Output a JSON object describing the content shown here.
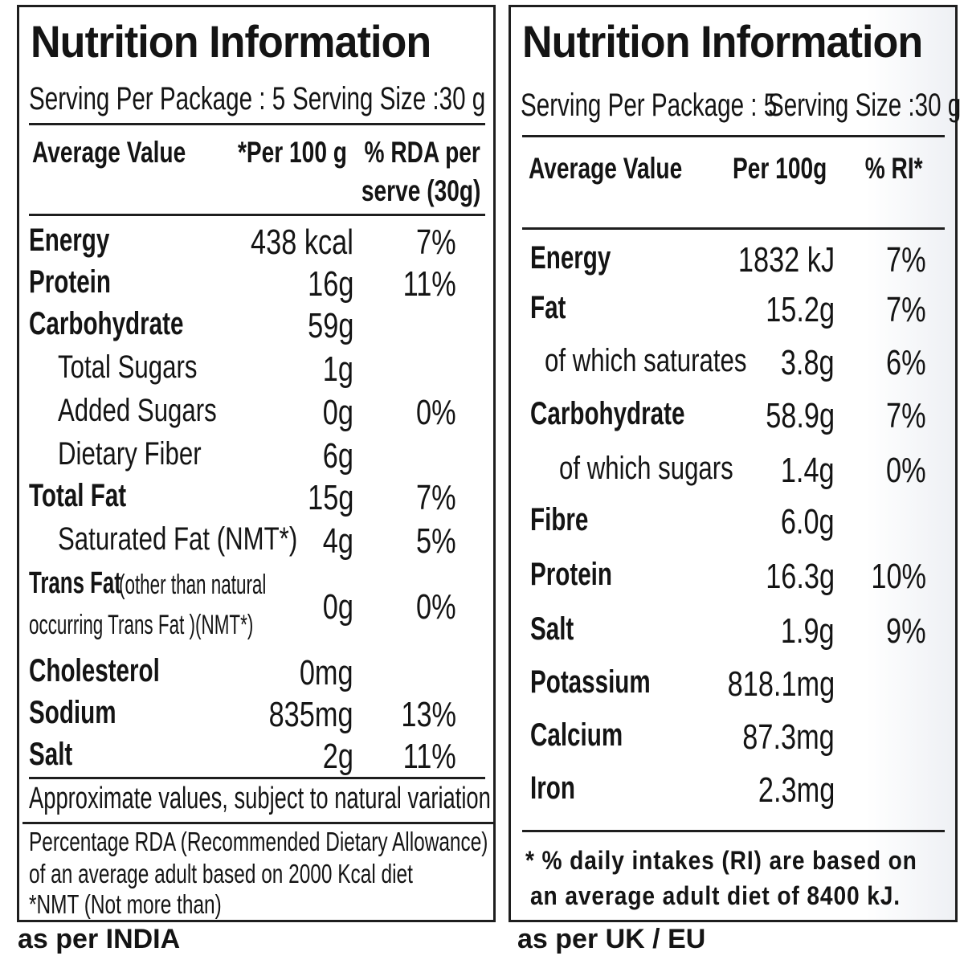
{
  "india": {
    "title": "Nutrition Information",
    "serving_per_package": "Serving Per Package : 5",
    "serving_size": "Serving Size :30 g",
    "headers": {
      "name": "Average Value",
      "per100": "*Per 100 g",
      "rda_line1": "% RDA per",
      "rda_line2": "serve (30g)"
    },
    "rows": [
      {
        "name": "Energy",
        "bold": true,
        "value": "438 kcal",
        "pct": "7%"
      },
      {
        "name": "Protein",
        "bold": true,
        "value": "16g",
        "pct": "11%"
      },
      {
        "name": "Carbohydrate",
        "bold": true,
        "value": "59g",
        "pct": ""
      },
      {
        "name": "Total Sugars",
        "bold": false,
        "value": "1g",
        "pct": ""
      },
      {
        "name": "Added Sugars",
        "bold": false,
        "value": "0g",
        "pct": "0%"
      },
      {
        "name": "Dietary Fiber",
        "bold": false,
        "value": "6g",
        "pct": ""
      },
      {
        "name": "Total Fat",
        "bold": true,
        "value": "15g",
        "pct": "7%"
      },
      {
        "name": "Saturated Fat (NMT*)",
        "bold": false,
        "value": "4g",
        "pct": "5%"
      }
    ],
    "trans_fat": {
      "name_bold": "Trans Fat",
      "name_rest": " (other than natural",
      "line2": "occurring Trans Fat )(NMT*)",
      "value": "0g",
      "pct": "0%"
    },
    "rows2": [
      {
        "name": "Cholesterol",
        "bold": true,
        "value": "0mg",
        "pct": ""
      },
      {
        "name": "Sodium",
        "bold": true,
        "value": "835mg",
        "pct": "13%"
      },
      {
        "name": "Salt",
        "bold": true,
        "value": "2g",
        "pct": "11%"
      }
    ],
    "approx_note": "Approximate values, subject to natural variation",
    "rda_note_1": "Percentage RDA (Recommended Dietary Allowance)",
    "rda_note_2": "of an average adult based on 2000 Kcal diet",
    "rda_note_3": "*NMT (Not more than)",
    "label": "as per INDIA"
  },
  "uk": {
    "title": "Nutrition Information",
    "serving_per_package": "Serving Per Package : 5",
    "serving_size": "Serving Size :30 g",
    "headers": {
      "name": "Average Value",
      "per100": "Per 100g",
      "ri": "% RI*"
    },
    "rows": [
      {
        "name": "Energy",
        "bold": true,
        "value": "1832 kJ",
        "pct": "7%"
      },
      {
        "name": "Fat",
        "bold": true,
        "value": "15.2g",
        "pct": "7%"
      },
      {
        "name": "of which saturates",
        "bold": false,
        "value": "3.8g",
        "pct": "6%"
      },
      {
        "name": "Carbohydrate",
        "bold": true,
        "value": "58.9g",
        "pct": "7%"
      },
      {
        "name": "of which sugars",
        "bold": false,
        "value": "1.4g",
        "pct": "0%"
      },
      {
        "name": "Fibre",
        "bold": true,
        "value": "6.0g",
        "pct": ""
      },
      {
        "name": "Protein",
        "bold": true,
        "value": "16.3g",
        "pct": "10%"
      },
      {
        "name": "Salt",
        "bold": true,
        "value": "1.9g",
        "pct": "9%"
      },
      {
        "name": "Potassium",
        "bold": true,
        "value": "818.1mg",
        "pct": ""
      },
      {
        "name": "Calcium",
        "bold": true,
        "value": "87.3mg",
        "pct": ""
      },
      {
        "name": "Iron",
        "bold": true,
        "value": "2.3mg",
        "pct": ""
      }
    ],
    "ri_note_1": "* % daily intakes (RI) are based on",
    "ri_note_2": "an average adult diet of 8400 kJ.",
    "label": "as per UK / EU"
  }
}
